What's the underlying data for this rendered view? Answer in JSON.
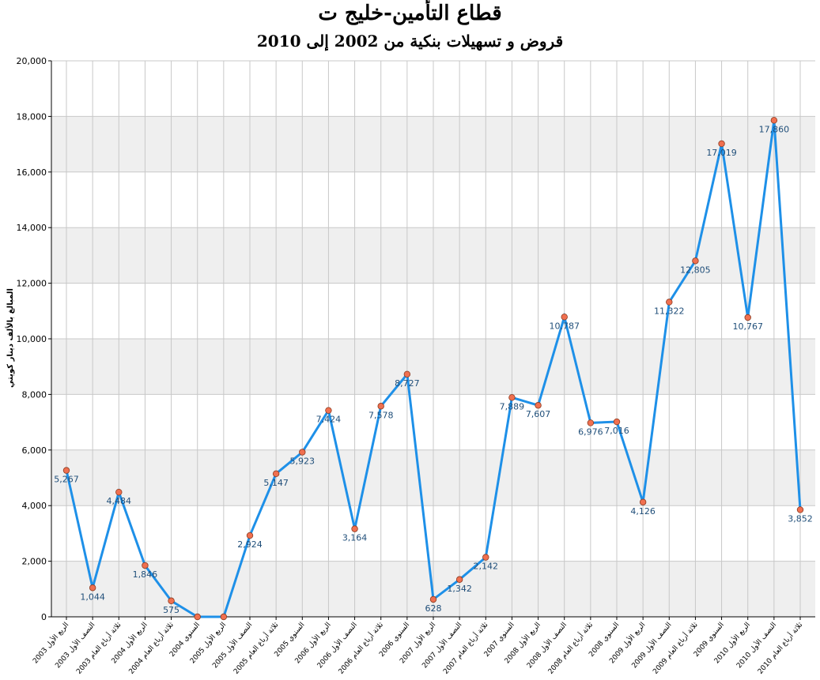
{
  "chart_data": {
    "type": "line",
    "title": "قطاع التأمين-خليج ت",
    "subtitle": "قروض و تسهيلات بنكية من 2002 إلى 2010",
    "ylabel": "المبالغ بالألف دينار كويتي",
    "xlabel": "",
    "ylim": [
      0,
      20000
    ],
    "yticks": [
      0,
      2000,
      4000,
      6000,
      8000,
      10000,
      12000,
      14000,
      16000,
      18000,
      20000
    ],
    "ytick_labels": [
      "0",
      "2,000",
      "4,000",
      "6,000",
      "8,000",
      "10,000",
      "12,000",
      "14,000",
      "16,000",
      "18,000",
      "20,000"
    ],
    "grid": true,
    "legend": "none",
    "categories": [
      "الربع الأول 2003",
      "النصف الأول 2003",
      "ثلاثة أرباع العام 2003",
      "الربع الأول 2004",
      "ثلاثة أرباع العام 2004",
      "السنوي 2004",
      "الربع الأول 2005",
      "النصف الأول 2005",
      "ثلاثة أرباع العام 2005",
      "السنوي 2005",
      "الربع الأول 2006",
      "النصف الأول 2006",
      "ثلاثة أرباع العام 2006",
      "السنوي 2006",
      "الربع الأول 2007",
      "النصف الأول 2007",
      "ثلاثة أرباع العام 2007",
      "السنوي 2007",
      "الربع الأول 2008",
      "النصف الأول 2008",
      "ثلاثة أرباع العام 2008",
      "السنوي 2008",
      "الربع الأول 2009",
      "النصف الأول 2009",
      "ثلاثة أرباع العام 2009",
      "السنوي 2009",
      "الربع الأول 2010",
      "النصف الأول 2010",
      "ثلاثة أرباع العام 2010"
    ],
    "values": [
      5267,
      1044,
      4484,
      1846,
      575,
      0,
      0,
      2924,
      5147,
      5923,
      7424,
      3164,
      7578,
      8727,
      628,
      1342,
      2142,
      7889,
      7607,
      10787,
      6976,
      7016,
      4126,
      11322,
      12805,
      17019,
      10767,
      17860,
      3852
    ],
    "data_labels": [
      "5,267",
      "1,044",
      "4,484",
      "1,846",
      "575",
      "",
      "",
      "2,924",
      "5,147",
      "5,923",
      "7,424",
      "3,164",
      "7,578",
      "8,727",
      "628",
      "1,342",
      "2,142",
      "7,889",
      "7,607",
      "10,787",
      "6,976",
      "7,016",
      "4,126",
      "11,322",
      "12,805",
      "17,019",
      "10,767",
      "17,860",
      "3,852"
    ],
    "colors": {
      "line": "#1e90e8",
      "marker_fill": "#f07050",
      "marker_stroke": "#8a3a20",
      "label": "#1f4e79",
      "band": "#efefef",
      "grid": "#c8c8c8",
      "axis": "#000000"
    }
  }
}
